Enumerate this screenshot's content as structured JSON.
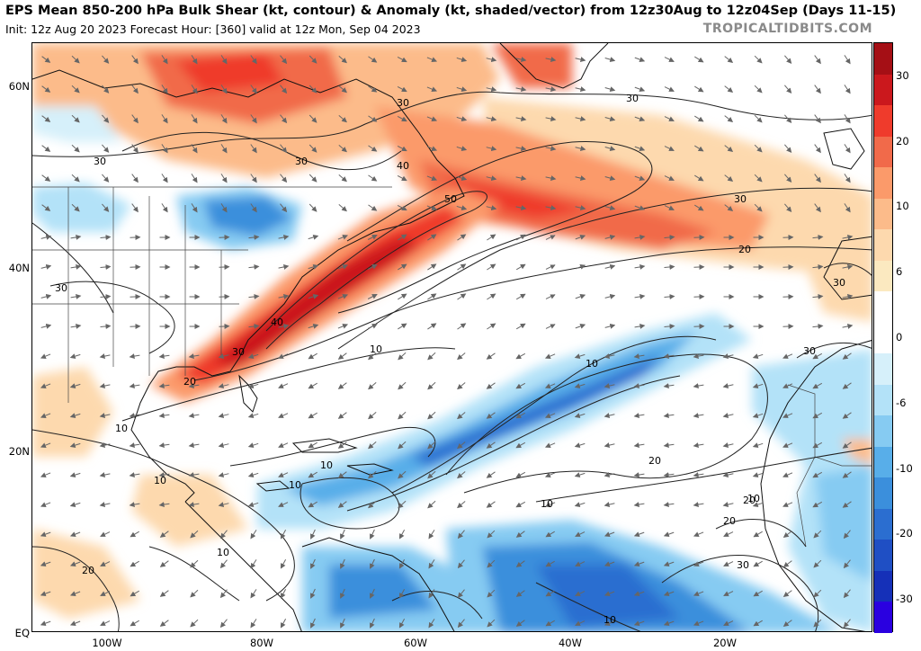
{
  "header": {
    "title": "EPS Mean 850-200 hPa Bulk Shear (kt, contour) & Anomaly (kt, shaded/vector) from 12z30Aug to 12z04Sep (Days 11-15)",
    "subtitle": "Init: 12z Aug 20 2023   Forecast Hour: [360]   valid at 12z Mon, Sep 04 2023",
    "credit": "TROPICALTIDBITS.COM"
  },
  "map": {
    "lat_labels": [
      "60N",
      "40N",
      "20N",
      "EQ"
    ],
    "lon_labels": [
      "100W",
      "80W",
      "60W",
      "40W",
      "20W"
    ],
    "contour_labels": [
      "30",
      "30",
      "30",
      "30",
      "40",
      "40",
      "50",
      "30",
      "20",
      "30",
      "30",
      "30",
      "10",
      "10",
      "10",
      "20",
      "10",
      "10",
      "10",
      "10",
      "10",
      "20",
      "20",
      "20",
      "10",
      "20",
      "30",
      "30",
      "10"
    ]
  },
  "colorbar": {
    "labels": [
      "30",
      "20",
      "10",
      "6",
      "0",
      "-6",
      "-10",
      "-20",
      "-30"
    ],
    "colors": [
      "#a50f15",
      "#cb181d",
      "#ef3b2c",
      "#f16a4a",
      "#fb9a6a",
      "#fcbb8a",
      "#fdd9ae",
      "#fbe9c0",
      "#ffffff",
      "#ffffff",
      "#d6f0fa",
      "#b3e2f8",
      "#86cbf2",
      "#58aee9",
      "#3b8fdc",
      "#2b6ed0",
      "#1f4fc4",
      "#1530b8",
      "#2a00e0"
    ]
  }
}
